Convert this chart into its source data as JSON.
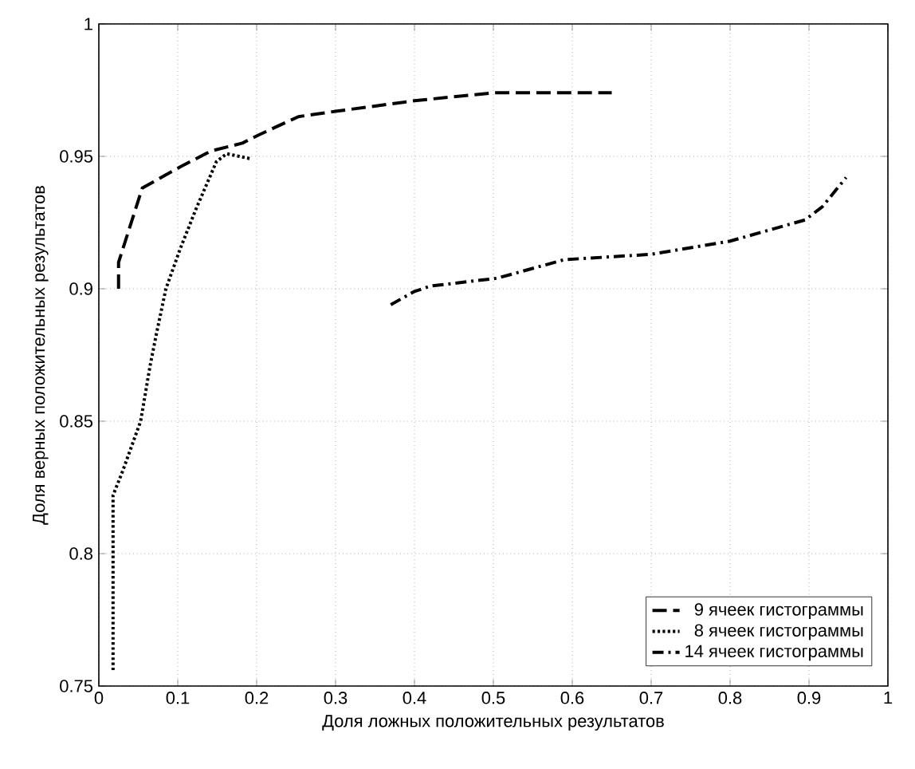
{
  "chart_data": {
    "type": "line",
    "xlabel": "Доля ложных положительных результатов",
    "ylabel": "Доля верных положительных результатов",
    "xlim": [
      0,
      1
    ],
    "ylim": [
      0.75,
      1
    ],
    "xticks": [
      0,
      0.1,
      0.2,
      0.3,
      0.4,
      0.5,
      0.6,
      0.7,
      0.8,
      0.9,
      1
    ],
    "yticks": [
      0.75,
      0.8,
      0.85,
      0.9,
      0.95,
      1
    ],
    "grid": true,
    "legend": "bottom right",
    "marker": "none",
    "series": [
      {
        "name": "9 ячеек гистограммы",
        "color": "#000000",
        "line_style": "dashed",
        "x": [
          0.025,
          0.025,
          0.055,
          0.103,
          0.142,
          0.182,
          0.202,
          0.253,
          0.3,
          0.35,
          0.4,
          0.5,
          0.65
        ],
        "values": [
          0.9,
          0.91,
          0.938,
          0.946,
          0.952,
          0.955,
          0.958,
          0.965,
          0.967,
          0.969,
          0.971,
          0.974,
          0.974
        ]
      },
      {
        "name": "8 ячеек гистограммы",
        "color": "#000000",
        "line_style": "dotted",
        "x": [
          0.018,
          0.018,
          0.03,
          0.053,
          0.065,
          0.073,
          0.085,
          0.103,
          0.123,
          0.149,
          0.162,
          0.194
        ],
        "values": [
          0.756,
          0.822,
          0.831,
          0.85,
          0.871,
          0.883,
          0.9,
          0.915,
          0.93,
          0.948,
          0.951,
          0.949
        ]
      },
      {
        "name": "14 ячеек гистограммы",
        "color": "#000000",
        "line_style": "dashdot",
        "x": [
          0.37,
          0.4,
          0.42,
          0.505,
          0.59,
          0.7,
          0.8,
          0.895,
          0.917,
          0.947
        ],
        "values": [
          0.894,
          0.899,
          0.901,
          0.904,
          0.911,
          0.913,
          0.918,
          0.926,
          0.931,
          0.942
        ]
      }
    ]
  }
}
